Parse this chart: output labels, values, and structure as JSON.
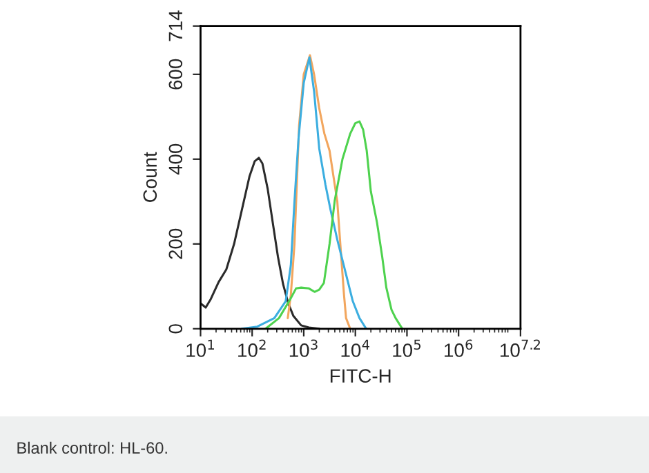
{
  "chart_data": {
    "type": "line",
    "xlabel": "FITC-H",
    "ylabel": "Count",
    "log": "x",
    "xlim": [
      10,
      15848932
    ],
    "ylim": [
      0,
      714
    ],
    "xticks": [
      {
        "value": 10,
        "label": "10$^{1}$"
      },
      {
        "value": 100,
        "label": "10$^{2}$"
      },
      {
        "value": 1000,
        "label": "10$^{3}$"
      },
      {
        "value": 10000,
        "label": "10$^{4}$"
      },
      {
        "value": 100000,
        "label": "10$^{5}$"
      },
      {
        "value": 1000000,
        "label": "10$^{6}$"
      },
      {
        "value": 15848932,
        "label": "10$^{7.2}$"
      }
    ],
    "yticks": [
      0,
      200,
      400,
      600,
      714
    ],
    "grid": false,
    "legend": false,
    "marker": "none",
    "line_style": "solid",
    "annotations": [
      "Blank control: HL-60."
    ],
    "series": [
      {
        "color": "#2b2b2b",
        "x": [
          10,
          12.6,
          15.8,
          22.4,
          31.6,
          44.7,
          63.1,
          89.1,
          112,
          135,
          158,
          200,
          251,
          316,
          398,
          501,
          631,
          891,
          1259,
          1995
        ],
        "values": [
          60,
          50,
          70,
          110,
          140,
          200,
          280,
          360,
          395,
          403,
          390,
          330,
          250,
          170,
          105,
          60,
          30,
          8,
          3,
          0
        ]
      },
      {
        "color": "#f2a65e",
        "x": [
          490,
          562,
          661,
          813,
          1000,
          1318,
          1585,
          1995,
          2512,
          3162,
          4467,
          5248,
          6026,
          6607,
          7943
        ],
        "values": [
          25,
          80,
          200,
          480,
          600,
          645,
          600,
          520,
          460,
          420,
          300,
          180,
          80,
          25,
          0
        ]
      },
      {
        "color": "#3caee0",
        "x": [
          63.1,
          126,
          269,
          447,
          562,
          661,
          794,
          1000,
          1288,
          1585,
          1995,
          2630,
          3311,
          4467,
          6607,
          8913,
          12023,
          16218
        ],
        "values": [
          0,
          5,
          25,
          65,
          150,
          300,
          450,
          580,
          640,
          560,
          425,
          340,
          280,
          210,
          128,
          65,
          25,
          0
        ]
      },
      {
        "color": "#4ed24e",
        "x": [
          182,
          331,
          550,
          708,
          891,
          1259,
          1622,
          1995,
          2455,
          3162,
          3981,
          5623,
          7943,
          10000,
          12023,
          14125,
          16596,
          19953,
          26303,
          33113,
          39811,
          50119,
          60256,
          81283
        ],
        "values": [
          0,
          25,
          70,
          95,
          97,
          95,
          87,
          92,
          108,
          200,
          302,
          400,
          460,
          485,
          489,
          470,
          420,
          324,
          250,
          170,
          97,
          45,
          25,
          0
        ]
      }
    ]
  }
}
